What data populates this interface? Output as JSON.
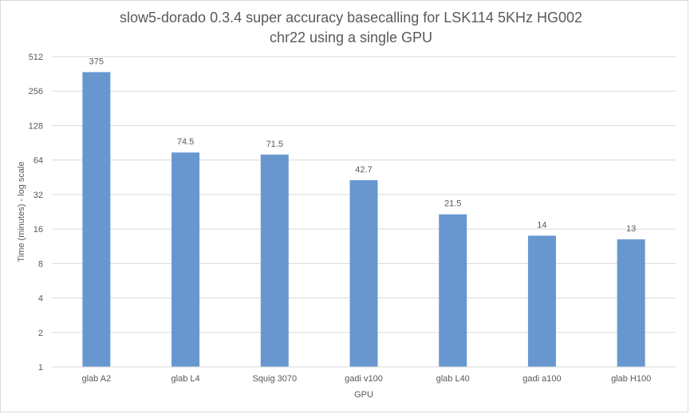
{
  "chart_data": {
    "type": "bar",
    "title": "slow5-dorado 0.3.4 super accuracy basecalling for LSK114 5KHz HG002 chr22 using a single GPU",
    "xlabel": "GPU",
    "ylabel": "Time (minutes)   - log scale",
    "yscale": "log2",
    "ylim": [
      1,
      512
    ],
    "yticks": [
      "1",
      "2",
      "4",
      "8",
      "16",
      "32",
      "64",
      "128",
      "256",
      "512"
    ],
    "grid": true,
    "legend": "none",
    "bar_color": "#6897d0",
    "categories": [
      "glab A2",
      "glab L4",
      "Squig 3070",
      "gadi v100",
      "glab L40",
      "gadi a100",
      "glab H100"
    ],
    "values": [
      375,
      74.5,
      71.5,
      42.7,
      21.5,
      14,
      13
    ],
    "data_labels": [
      "375",
      "74.5",
      "71.5",
      "42.7",
      "21.5",
      "14",
      "13"
    ]
  }
}
